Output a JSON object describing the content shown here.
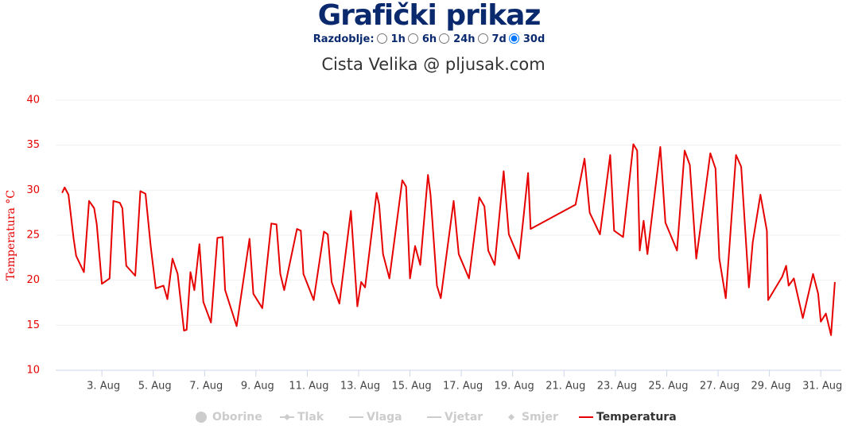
{
  "header": {
    "title": "Grafički prikaz",
    "period_label": "Razdoblje:",
    "periods": [
      "1h",
      "6h",
      "24h",
      "7d",
      "30d"
    ],
    "selected_period": 4
  },
  "chart_data": {
    "type": "line",
    "subtitle": "Cista Velika @ pljusak.com",
    "y_label": "Temperatura °C",
    "grid": true,
    "xlim": [
      1.2,
      31.8
    ],
    "ylim": [
      10,
      40
    ],
    "yticks": [
      10,
      15,
      20,
      25,
      30,
      35,
      40
    ],
    "xticks": [
      {
        "value": 3,
        "label": "3. Aug"
      },
      {
        "value": 5,
        "label": "5. Aug"
      },
      {
        "value": 7,
        "label": "7. Aug"
      },
      {
        "value": 9,
        "label": "9. Aug"
      },
      {
        "value": 11,
        "label": "11. Aug"
      },
      {
        "value": 13,
        "label": "13. Aug"
      },
      {
        "value": 15,
        "label": "15. Aug"
      },
      {
        "value": 17,
        "label": "17. Aug"
      },
      {
        "value": 19,
        "label": "19. Aug"
      },
      {
        "value": 21,
        "label": "21. Aug"
      },
      {
        "value": 23,
        "label": "23. Aug"
      },
      {
        "value": 25,
        "label": "25. Aug"
      },
      {
        "value": 27,
        "label": "27. Aug"
      },
      {
        "value": 29,
        "label": "29. Aug"
      },
      {
        "value": 31,
        "label": "31. Aug"
      }
    ],
    "x": [
      1.45,
      1.55,
      1.7,
      1.9,
      2.0,
      2.3,
      2.5,
      2.7,
      2.8,
      3.0,
      3.3,
      3.45,
      3.7,
      3.8,
      3.95,
      4.3,
      4.5,
      4.7,
      4.9,
      5.1,
      5.4,
      5.55,
      5.75,
      5.95,
      6.2,
      6.3,
      6.45,
      6.6,
      6.8,
      6.95,
      7.25,
      7.5,
      7.7,
      7.8,
      8.25,
      8.75,
      8.9,
      9.25,
      9.6,
      9.8,
      9.95,
      10.1,
      10.6,
      10.75,
      10.85,
      11.25,
      11.65,
      11.8,
      11.95,
      12.25,
      12.7,
      12.95,
      13.1,
      13.25,
      13.7,
      13.8,
      13.95,
      14.2,
      14.7,
      14.85,
      15.0,
      15.2,
      15.4,
      15.7,
      15.8,
      16.05,
      16.2,
      16.7,
      16.9,
      17.3,
      17.7,
      17.9,
      18.05,
      18.3,
      18.65,
      18.85,
      19.25,
      19.45,
      19.6,
      19.7,
      21.45,
      21.8,
      22.0,
      22.4,
      22.8,
      22.95,
      23.3,
      23.7,
      23.85,
      23.95,
      24.1,
      24.25,
      24.75,
      24.95,
      25.4,
      25.7,
      25.9,
      26.15,
      26.3,
      26.7,
      26.9,
      27.05,
      27.3,
      27.7,
      27.9,
      28.2,
      28.35,
      28.65,
      28.9,
      28.95,
      29.5,
      29.65,
      29.75,
      29.95,
      30.3,
      30.7,
      30.9,
      31.0,
      31.2,
      31.4,
      31.55
    ],
    "series": [
      {
        "name": "Oborine",
        "marker": "circle",
        "visible": false
      },
      {
        "name": "Tlak",
        "marker": "line-diamond",
        "visible": false
      },
      {
        "name": "Vlaga",
        "marker": "line",
        "visible": false
      },
      {
        "name": "Vjetar",
        "marker": "line",
        "visible": false
      },
      {
        "name": "Smjer",
        "marker": "diamond",
        "visible": false
      },
      {
        "name": "Temperatura",
        "marker": "line",
        "visible": true,
        "color": "#e60000",
        "values": [
          29.7,
          30.3,
          29.5,
          24.6,
          22.7,
          20.9,
          28.8,
          28.0,
          26.2,
          19.6,
          20.2,
          28.8,
          28.6,
          28.0,
          21.6,
          20.5,
          29.9,
          29.6,
          23.8,
          19.1,
          19.4,
          17.9,
          22.4,
          20.7,
          14.4,
          14.5,
          20.9,
          18.9,
          24.0,
          17.6,
          15.3,
          24.7,
          24.8,
          18.9,
          14.9,
          24.6,
          18.5,
          16.9,
          26.3,
          26.2,
          20.7,
          18.9,
          25.7,
          25.5,
          20.7,
          17.8,
          25.4,
          25.1,
          19.8,
          17.4,
          27.7,
          17.1,
          19.8,
          19.2,
          29.7,
          28.4,
          22.9,
          20.2,
          31.1,
          30.4,
          20.2,
          23.8,
          21.7,
          31.7,
          29.5,
          19.4,
          18.0,
          28.8,
          22.9,
          20.2,
          29.2,
          28.2,
          23.3,
          21.7,
          32.1,
          25.1,
          22.4,
          27.7,
          31.9,
          25.7,
          28.4,
          33.5,
          27.5,
          25.1,
          33.9,
          25.5,
          24.8,
          35.1,
          34.4,
          23.3,
          26.6,
          22.9,
          34.8,
          26.4,
          23.3,
          34.4,
          32.8,
          22.4,
          25.5,
          34.1,
          32.4,
          22.4,
          18.0,
          33.9,
          32.6,
          19.2,
          24.2,
          29.5,
          25.5,
          17.8,
          20.4,
          21.6,
          19.4,
          20.2,
          15.8,
          20.7,
          18.5,
          15.4,
          16.3,
          13.9,
          19.8
        ]
      }
    ]
  }
}
